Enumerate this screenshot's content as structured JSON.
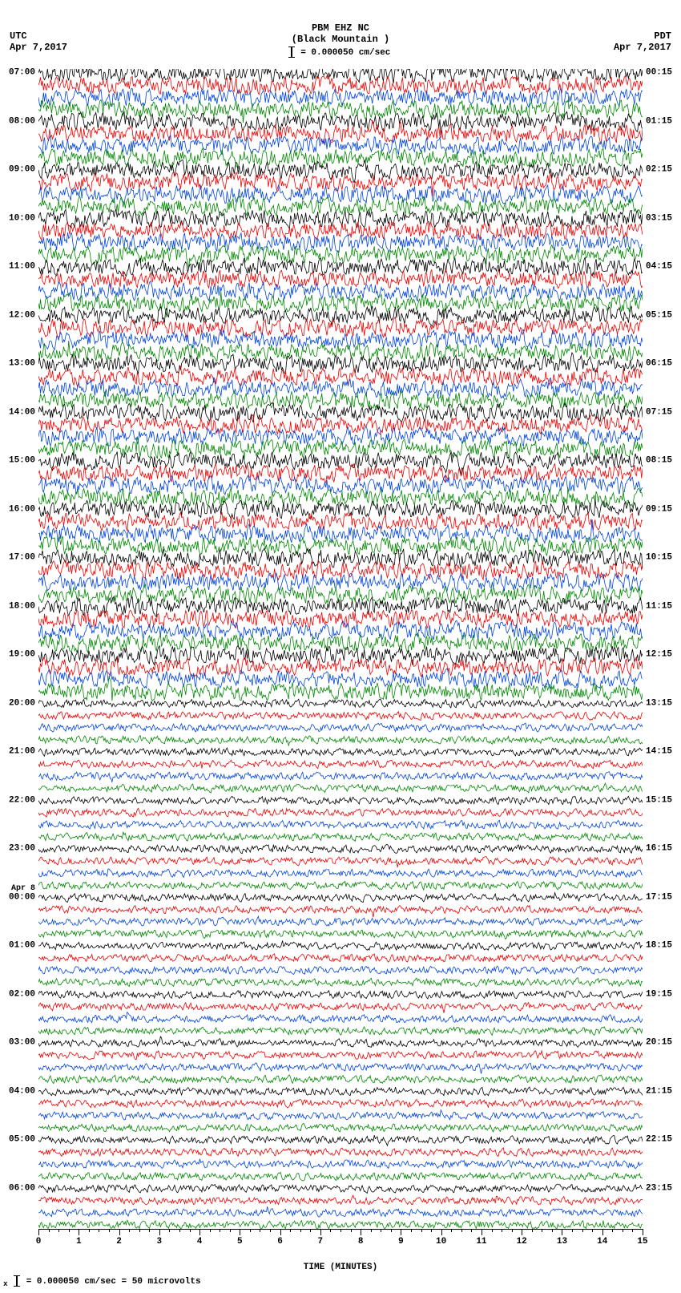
{
  "type": "helicorder",
  "header": {
    "left_tz": "UTC",
    "left_date": "Apr 7,2017",
    "right_tz": "PDT",
    "right_date": "Apr 7,2017",
    "station": "PBM EHZ NC",
    "location": "(Black Mountain )",
    "scale_text": "= 0.000050 cm/sec"
  },
  "footer": {
    "text_before_bar": "x",
    "text_after_bar": "= 0.000050 cm/sec =     50 microvolts"
  },
  "x_axis": {
    "title": "TIME (MINUTES)",
    "min": 0,
    "max": 15,
    "major_ticks": [
      0,
      1,
      2,
      3,
      4,
      5,
      6,
      7,
      8,
      9,
      10,
      11,
      12,
      13,
      14,
      15
    ],
    "tick_labels": [
      "0",
      "1",
      "2",
      "3",
      "4",
      "5",
      "6",
      "7",
      "8",
      "9",
      "10",
      "11",
      "12",
      "13",
      "14",
      "15"
    ],
    "minor_per_major": 4
  },
  "colors": {
    "sequence": [
      "#000000",
      "#ee0000",
      "#0044dd",
      "#008800"
    ],
    "background": "#ffffff",
    "text": "#000000"
  },
  "layout": {
    "hours": 24,
    "lines_per_hour": 4,
    "total_lines": 96,
    "high_amp_until_line": 52,
    "high_amp_value": 9,
    "low_amp_value": 4
  },
  "left_hour_labels": [
    "07:00",
    "08:00",
    "09:00",
    "10:00",
    "11:00",
    "12:00",
    "13:00",
    "14:00",
    "15:00",
    "16:00",
    "17:00",
    "18:00",
    "19:00",
    "20:00",
    "21:00",
    "22:00",
    "23:00",
    "00:00",
    "01:00",
    "02:00",
    "03:00",
    "04:00",
    "05:00",
    "06:00"
  ],
  "left_day_break": {
    "index": 17,
    "label": "Apr 8"
  },
  "right_hour_labels": [
    "00:15",
    "01:15",
    "02:15",
    "03:15",
    "04:15",
    "05:15",
    "06:15",
    "07:15",
    "08:15",
    "09:15",
    "10:15",
    "11:15",
    "12:15",
    "13:15",
    "14:15",
    "15:15",
    "16:15",
    "17:15",
    "18:15",
    "19:15",
    "20:15",
    "21:15",
    "22:15",
    "23:15"
  ],
  "typography": {
    "font_family": "Courier New, monospace",
    "header_fontsize": 12,
    "label_fontsize": 11,
    "font_weight": "bold"
  }
}
